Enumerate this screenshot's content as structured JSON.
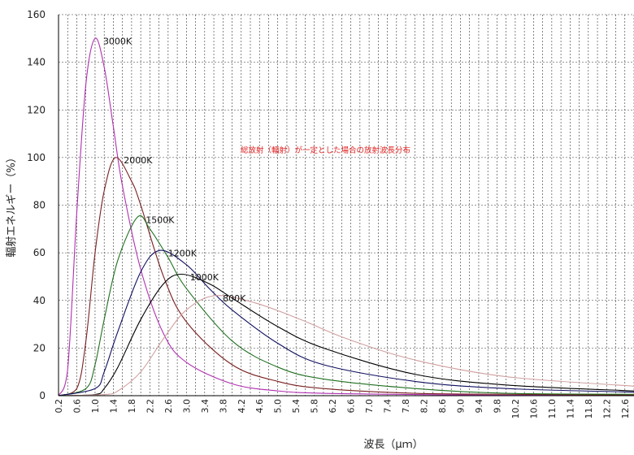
{
  "chart_data": {
    "type": "line",
    "title": "",
    "annotation": "総放射（輻射）が一定とした場合の放射波長分布",
    "xlabel": "波長（μｍ）",
    "ylabel": "輻射エネルギー（%）",
    "xlim": [
      0.2,
      12.8
    ],
    "ylim": [
      0,
      160
    ],
    "grid": true,
    "yticks": [
      0,
      20,
      40,
      60,
      80,
      100,
      120,
      140,
      160
    ],
    "xtick_labels": [
      "0.2",
      "0.6",
      "1.0",
      "1.4",
      "1.8",
      "2.2",
      "2.6",
      "3.0",
      "3.4",
      "3.8",
      "4.2",
      "4.6",
      "5.0",
      "5.4",
      "5.8",
      "6.2",
      "6.6",
      "7.0",
      "7.4",
      "7.8",
      "8.2",
      "8.6",
      "9.0",
      "9.4",
      "9.8",
      "10.2",
      "10.6",
      "11.0",
      "11.4",
      "11.8",
      "12.2",
      "12.6"
    ],
    "series": [
      {
        "name": "3000K",
        "color": "#b030b0",
        "temperature": 3000,
        "x": [
          0.2,
          0.4,
          0.6,
          0.8,
          1.0,
          1.2,
          1.4,
          1.6,
          2.0,
          2.5,
          3.0,
          4.0,
          5.0,
          6.0,
          8.0,
          10.0,
          12.8
        ],
        "y": [
          0,
          11,
          77,
          131,
          150,
          138,
          113,
          88,
          53,
          26,
          14,
          5,
          2,
          1,
          0.5,
          0.2,
          0.1
        ]
      },
      {
        "name": "2000K",
        "color": "#7a2020",
        "temperature": 2000,
        "x": [
          0.2,
          0.6,
          0.8,
          1.0,
          1.2,
          1.45,
          1.8,
          2.0,
          2.5,
          3.0,
          4.0,
          5.0,
          6.0,
          8.0,
          10.0,
          12.8
        ],
        "y": [
          0,
          3,
          23,
          60,
          86,
          100,
          90,
          80,
          50,
          31,
          13,
          6,
          3,
          1,
          0.6,
          0.3
        ]
      },
      {
        "name": "1500K",
        "color": "#207020",
        "temperature": 1500,
        "x": [
          0.2,
          0.8,
          1.0,
          1.2,
          1.5,
          1.93,
          2.2,
          2.6,
          3.0,
          4.0,
          5.0,
          6.0,
          8.0,
          10.0,
          12.8
        ],
        "y": [
          0,
          3,
          13,
          32,
          57,
          75,
          70,
          58,
          45,
          23,
          12,
          7,
          3,
          1,
          0.6
        ]
      },
      {
        "name": "1200K",
        "color": "#101060",
        "temperature": 1200,
        "x": [
          0.2,
          1.0,
          1.2,
          1.5,
          2.0,
          2.42,
          3.0,
          3.5,
          4.0,
          5.0,
          6.0,
          8.0,
          10.0,
          12.8
        ],
        "y": [
          0,
          3,
          10,
          27,
          52,
          61,
          55,
          45,
          36,
          22,
          13,
          6,
          3,
          1.5
        ]
      },
      {
        "name": "1000K",
        "color": "#000000",
        "temperature": 1000,
        "x": [
          0.2,
          1.0,
          1.2,
          1.5,
          2.0,
          2.5,
          2.9,
          3.5,
          4.0,
          5.0,
          6.0,
          8.0,
          10.0,
          12.8
        ],
        "y": [
          0,
          0.5,
          3,
          12,
          32,
          47,
          51,
          47,
          41,
          29,
          20,
          9,
          4.5,
          2
        ]
      },
      {
        "name": "800K",
        "color": "#d0a0a0",
        "temperature": 800,
        "x": [
          0.2,
          1.2,
          1.5,
          2.0,
          2.5,
          3.0,
          3.62,
          4.5,
          5.5,
          6.5,
          8.0,
          10.0,
          12.8
        ],
        "y": [
          0,
          0.5,
          2,
          10,
          24,
          36,
          42,
          39,
          32,
          24,
          15,
          8,
          4
        ]
      }
    ]
  }
}
